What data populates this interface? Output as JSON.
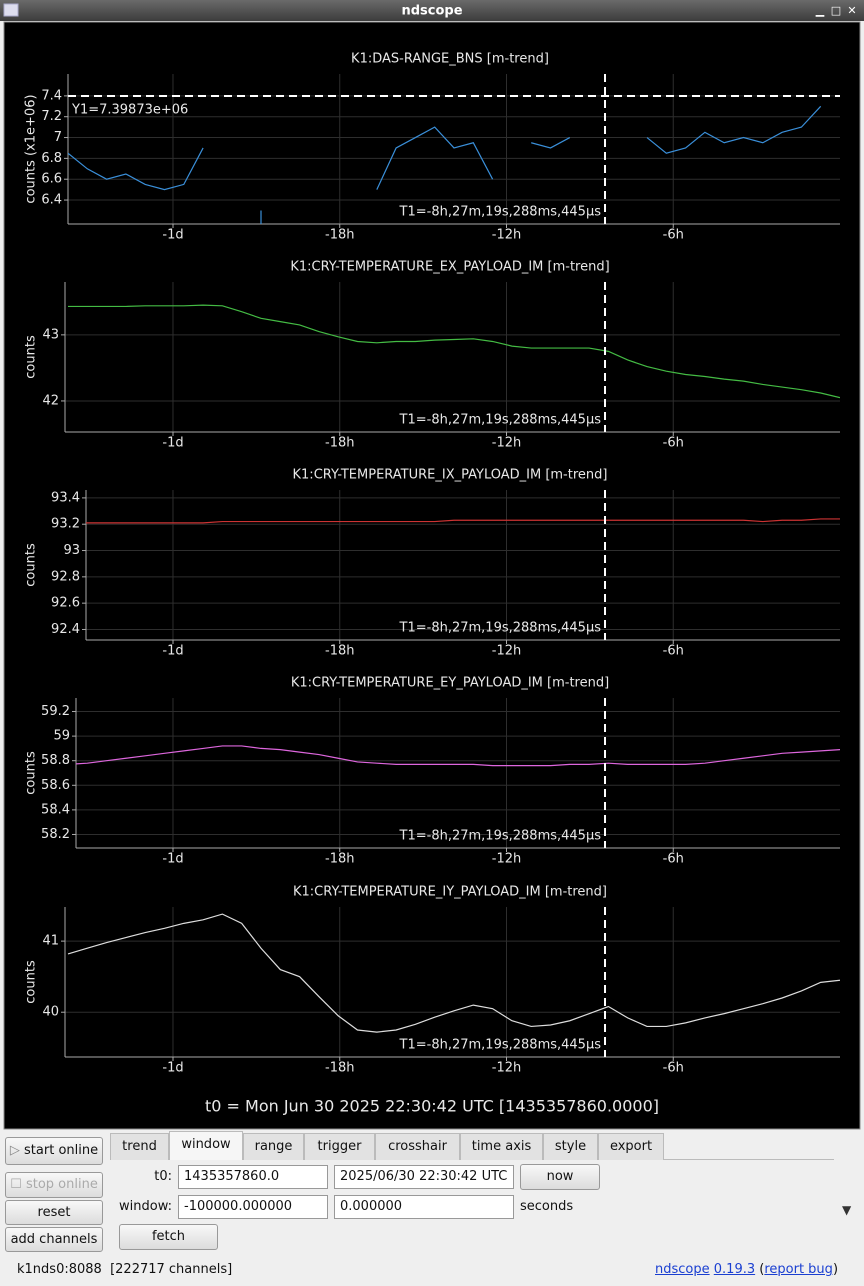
{
  "window_title": "ndscope",
  "chart_data": [
    {
      "type": "line",
      "title": "K1:DAS-RANGE_BNS [m-trend]",
      "y_label": "counts (x1e+06)",
      "color": "#3a8fd9",
      "xlim": [
        -100000,
        0
      ],
      "xticks": [
        {
          "value": -86400,
          "label": "-1d"
        },
        {
          "value": -64800,
          "label": "-18h"
        },
        {
          "value": -43200,
          "label": "-12h"
        },
        {
          "value": -21600,
          "label": "-6h"
        }
      ],
      "ylim": [
        6.17,
        7.61
      ],
      "yticks": [
        6.4,
        6.6,
        6.8,
        7,
        7.2,
        7.4
      ],
      "grid": true,
      "x": [
        -100000,
        -97500,
        -95000,
        -92500,
        -90000,
        -87500,
        -85000,
        -82500,
        -80000,
        -77500,
        -75000,
        -72500,
        -70000,
        -67500,
        -65000,
        -62500,
        -60000,
        -57500,
        -55000,
        -52500,
        -50000,
        -47500,
        -45000,
        -42500,
        -40000,
        -37500,
        -35000,
        -32500,
        -30000,
        -27500,
        -25000,
        -22500,
        -20000,
        -17500,
        -15000,
        -12500,
        -10000,
        -7500,
        -5000,
        -2500,
        0
      ],
      "values": [
        6.85,
        6.7,
        6.6,
        6.65,
        6.55,
        6.5,
        6.55,
        6.9,
        null,
        null,
        6.3,
        null,
        null,
        null,
        null,
        null,
        6.5,
        6.9,
        7.0,
        7.1,
        6.9,
        6.95,
        6.6,
        null,
        6.95,
        6.9,
        7.0,
        null,
        null,
        null,
        7.0,
        6.85,
        6.9,
        7.05,
        6.95,
        7.0,
        6.95,
        7.05,
        7.1,
        7.3,
        null
      ],
      "t1": {
        "value": -30439.288445,
        "label": "T1=-8h,27m,19s,288ms,445µs"
      },
      "y1": {
        "value": 7.39873,
        "label": "Y1=7.39873e+06"
      }
    },
    {
      "type": "line",
      "title": "K1:CRY-TEMPERATURE_EX_PAYLOAD_IM [m-trend]",
      "y_label": "counts",
      "color": "#44bb44",
      "xlim": [
        -100000,
        0
      ],
      "xticks": [
        {
          "value": -86400,
          "label": "-1d"
        },
        {
          "value": -64800,
          "label": "-18h"
        },
        {
          "value": -43200,
          "label": "-12h"
        },
        {
          "value": -21600,
          "label": "-6h"
        }
      ],
      "ylim": [
        41.53,
        43.8
      ],
      "yticks": [
        42,
        43
      ],
      "grid": true,
      "x": [
        -100000,
        -97500,
        -95000,
        -92500,
        -90000,
        -87500,
        -85000,
        -82500,
        -80000,
        -77500,
        -75000,
        -72500,
        -70000,
        -67500,
        -65000,
        -62500,
        -60000,
        -57500,
        -55000,
        -52500,
        -50000,
        -47500,
        -45000,
        -42500,
        -40000,
        -37500,
        -35000,
        -32500,
        -30000,
        -27500,
        -25000,
        -22500,
        -20000,
        -17500,
        -15000,
        -12500,
        -10000,
        -7500,
        -5000,
        -2500,
        0
      ],
      "values": [
        43.43,
        43.43,
        43.43,
        43.43,
        43.44,
        43.44,
        43.44,
        43.45,
        43.44,
        43.35,
        43.25,
        43.2,
        43.15,
        43.05,
        42.97,
        42.9,
        42.88,
        42.9,
        42.9,
        42.92,
        42.93,
        42.94,
        42.9,
        42.83,
        42.8,
        42.8,
        42.8,
        42.8,
        42.75,
        42.62,
        42.52,
        42.45,
        42.4,
        42.37,
        42.33,
        42.3,
        42.25,
        42.21,
        42.17,
        42.12,
        42.05
      ],
      "t1": {
        "value": -30439.288445,
        "label": "T1=-8h,27m,19s,288ms,445µs"
      }
    },
    {
      "type": "line",
      "title": "K1:CRY-TEMPERATURE_IX_PAYLOAD_IM [m-trend]",
      "y_label": "counts",
      "color": "#cc3333",
      "xlim": [
        -100000,
        0
      ],
      "xticks": [
        {
          "value": -86400,
          "label": "-1d"
        },
        {
          "value": -64800,
          "label": "-18h"
        },
        {
          "value": -43200,
          "label": "-12h"
        },
        {
          "value": -21600,
          "label": "-6h"
        }
      ],
      "ylim": [
        92.32,
        93.46
      ],
      "yticks": [
        92.4,
        92.6,
        92.8,
        93,
        93.2,
        93.4
      ],
      "grid": true,
      "x": [
        -100000,
        -97500,
        -95000,
        -92500,
        -90000,
        -87500,
        -85000,
        -82500,
        -80000,
        -77500,
        -75000,
        -72500,
        -70000,
        -67500,
        -65000,
        -62500,
        -60000,
        -57500,
        -55000,
        -52500,
        -50000,
        -47500,
        -45000,
        -42500,
        -40000,
        -37500,
        -35000,
        -32500,
        -30000,
        -27500,
        -25000,
        -22500,
        -20000,
        -17500,
        -15000,
        -12500,
        -10000,
        -7500,
        -5000,
        -2500,
        0
      ],
      "values": [
        93.21,
        93.21,
        93.21,
        93.21,
        93.21,
        93.21,
        93.21,
        93.21,
        93.22,
        93.22,
        93.22,
        93.22,
        93.22,
        93.22,
        93.22,
        93.22,
        93.22,
        93.22,
        93.22,
        93.22,
        93.23,
        93.23,
        93.23,
        93.23,
        93.23,
        93.23,
        93.23,
        93.23,
        93.23,
        93.23,
        93.23,
        93.23,
        93.23,
        93.23,
        93.23,
        93.23,
        93.22,
        93.23,
        93.23,
        93.24,
        93.24
      ],
      "t1": {
        "value": -30439.288445,
        "label": "T1=-8h,27m,19s,288ms,445µs"
      }
    },
    {
      "type": "line",
      "title": "K1:CRY-TEMPERATURE_EY_PAYLOAD_IM [m-trend]",
      "y_label": "counts",
      "color": "#dd66dd",
      "xlim": [
        -100000,
        0
      ],
      "xticks": [
        {
          "value": -86400,
          "label": "-1d"
        },
        {
          "value": -64800,
          "label": "-18h"
        },
        {
          "value": -43200,
          "label": "-12h"
        },
        {
          "value": -21600,
          "label": "-6h"
        }
      ],
      "ylim": [
        58.09,
        59.31
      ],
      "yticks": [
        58.2,
        58.4,
        58.6,
        58.8,
        59,
        59.2
      ],
      "grid": true,
      "x": [
        -100000,
        -97500,
        -95000,
        -92500,
        -90000,
        -87500,
        -85000,
        -82500,
        -80000,
        -77500,
        -75000,
        -72500,
        -70000,
        -67500,
        -65000,
        -62500,
        -60000,
        -57500,
        -55000,
        -52500,
        -50000,
        -47500,
        -45000,
        -42500,
        -40000,
        -37500,
        -35000,
        -32500,
        -30000,
        -27500,
        -25000,
        -22500,
        -20000,
        -17500,
        -15000,
        -12500,
        -10000,
        -7500,
        -5000,
        -2500,
        0
      ],
      "values": [
        58.77,
        58.78,
        58.8,
        58.82,
        58.84,
        58.86,
        58.88,
        58.9,
        58.92,
        58.92,
        58.9,
        58.89,
        58.87,
        58.85,
        58.82,
        58.79,
        58.78,
        58.77,
        58.77,
        58.77,
        58.77,
        58.77,
        58.76,
        58.76,
        58.76,
        58.76,
        58.77,
        58.77,
        58.78,
        58.77,
        58.77,
        58.77,
        58.77,
        58.78,
        58.8,
        58.82,
        58.84,
        58.86,
        58.87,
        58.88,
        58.89
      ],
      "t1": {
        "value": -30439.288445,
        "label": "T1=-8h,27m,19s,288ms,445µs"
      }
    },
    {
      "type": "line",
      "title": "K1:CRY-TEMPERATURE_IY_PAYLOAD_IM [m-trend]",
      "y_label": "counts",
      "color": "#dddddd",
      "xlim": [
        -100000,
        0
      ],
      "xticks": [
        {
          "value": -86400,
          "label": "-1d"
        },
        {
          "value": -64800,
          "label": "-18h"
        },
        {
          "value": -43200,
          "label": "-12h"
        },
        {
          "value": -21600,
          "label": "-6h"
        }
      ],
      "ylim": [
        39.37,
        41.48
      ],
      "yticks": [
        40,
        41
      ],
      "grid": true,
      "x": [
        -100000,
        -97500,
        -95000,
        -92500,
        -90000,
        -87500,
        -85000,
        -82500,
        -80000,
        -77500,
        -75000,
        -72500,
        -70000,
        -67500,
        -65000,
        -62500,
        -60000,
        -57500,
        -55000,
        -52500,
        -50000,
        -47500,
        -45000,
        -42500,
        -40000,
        -37500,
        -35000,
        -32500,
        -30000,
        -27500,
        -25000,
        -22500,
        -20000,
        -17500,
        -15000,
        -12500,
        -10000,
        -7500,
        -5000,
        -2500,
        0
      ],
      "values": [
        40.82,
        40.9,
        40.98,
        41.05,
        41.12,
        41.18,
        41.25,
        41.3,
        41.38,
        41.25,
        40.9,
        40.6,
        40.5,
        40.22,
        39.95,
        39.75,
        39.72,
        39.75,
        39.83,
        39.93,
        40.02,
        40.1,
        40.05,
        39.88,
        39.8,
        39.82,
        39.88,
        39.98,
        40.08,
        39.92,
        39.8,
        39.8,
        39.85,
        39.92,
        39.98,
        40.05,
        40.12,
        40.2,
        40.3,
        40.42,
        40.45
      ],
      "t1": {
        "value": -30439.288445,
        "label": "T1=-8h,27m,19s,288ms,445µs"
      }
    }
  ],
  "footer": "t0 = Mon Jun 30 2025 22:30:42 UTC [1435357860.0000]",
  "buttons": [
    "start online",
    "stop online",
    "reset",
    "add channels"
  ],
  "tabs": [
    "trend",
    "window",
    "range",
    "trigger",
    "crosshair",
    "time axis",
    "style",
    "export"
  ],
  "window_tab": {
    "t0_label": "t0:",
    "t0_gps": "1435357860.0",
    "t0_utc": "2025/06/30 22:30:42 UTC",
    "now": "now",
    "window_label": "window:",
    "window_start": "-100000.000000",
    "window_end": "0.000000",
    "units": "seconds",
    "fetch": "fetch"
  },
  "status": {
    "server": "k1nds0:8088",
    "channels": "[222717 channels]",
    "app": "ndscope",
    "version": "0.19.3",
    "open": "(",
    "report": "report bug",
    "close": ")"
  }
}
